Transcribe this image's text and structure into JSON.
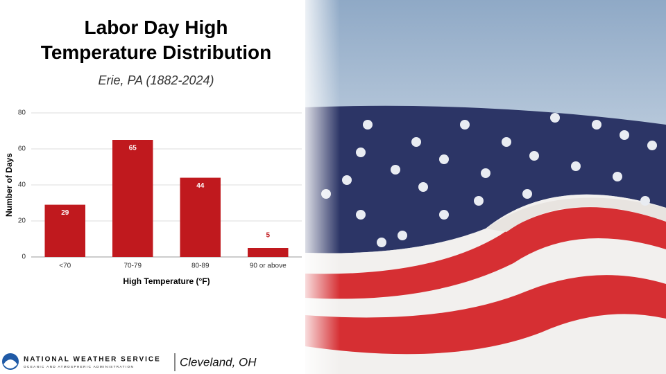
{
  "chart_data": {
    "type": "bar",
    "title": "Labor Day High Temperature Distribution",
    "subtitle": "Erie, PA (1882-2024)",
    "x_label": "High Temperature (°F)",
    "y_label": "Number of Days",
    "categories": [
      "<70",
      "70-79",
      "80-89",
      "90 or above"
    ],
    "values": [
      29,
      65,
      44,
      5
    ],
    "color": "#c0191e",
    "ylim": [
      0,
      80
    ],
    "yticks": [
      0,
      20,
      40,
      60,
      80
    ],
    "grid": true
  },
  "footer": {
    "agency": "NATIONAL WEATHER SERVICE",
    "agency_sub": "OCEANIC AND ATMOSPHERIC ADMINISTRATION",
    "office": "Cleveland, OH"
  }
}
